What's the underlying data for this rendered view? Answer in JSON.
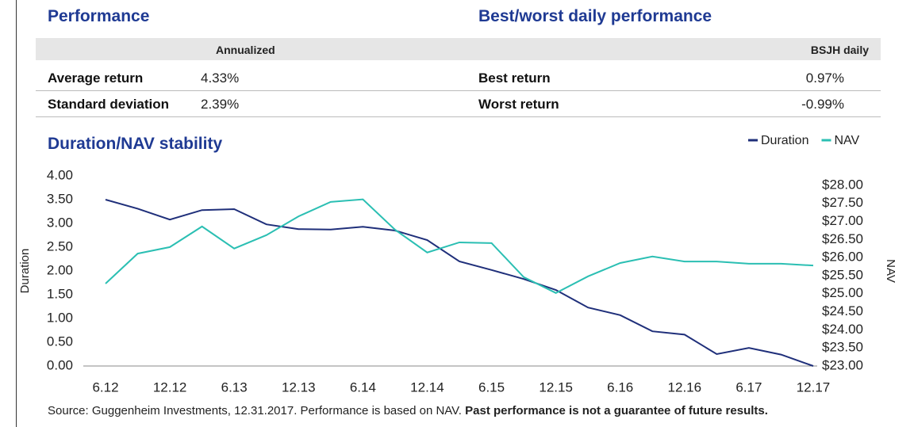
{
  "performance": {
    "title": "Performance",
    "column_header": "Annualized",
    "rows": [
      [
        "Average return",
        "4.33%"
      ],
      [
        "Standard deviation",
        "2.39%"
      ]
    ]
  },
  "best_worst": {
    "title": "Best/worst daily performance",
    "column_header": "BSJH daily",
    "rows": [
      [
        "Best return",
        "0.97%"
      ],
      [
        "Worst return",
        "-0.99%"
      ]
    ]
  },
  "chart_data": {
    "type": "line",
    "title": "Duration/NAV stability",
    "y_label": "Duration",
    "y2_label": "NAV",
    "categories": [
      "6.12",
      null,
      "12.12",
      null,
      "6.13",
      null,
      "12.13",
      null,
      "6.14",
      null,
      "12.14",
      null,
      "6.15",
      null,
      "12.15",
      null,
      "6.16",
      null,
      "12.16",
      null,
      "6.17",
      null,
      "12.17"
    ],
    "series": [
      {
        "name": "Duration",
        "color": "#1f2f7a",
        "values": [
          3.5,
          3.31,
          3.08,
          3.28,
          3.3,
          2.98,
          2.88,
          2.87,
          2.93,
          2.85,
          2.65,
          2.2,
          2.02,
          1.83,
          1.6,
          1.23,
          1.07,
          0.73,
          0.66,
          0.25,
          0.38,
          0.24,
          0.0
        ]
      },
      {
        "name": "NAV",
        "color": "#2bbfb3",
        "axis": "y2",
        "values": [
          25.28,
          26.11,
          26.29,
          26.86,
          26.25,
          26.62,
          27.14,
          27.54,
          27.61,
          26.77,
          26.14,
          26.42,
          26.4,
          25.46,
          25.02,
          25.48,
          25.85,
          26.03,
          25.89,
          25.89,
          25.83,
          25.83,
          25.78
        ]
      }
    ],
    "ylim": [
      0,
      4
    ],
    "yticks": [
      {
        "value": 0,
        "label": "0.00"
      },
      {
        "value": 0.5,
        "label": "0.50"
      },
      {
        "value": 1,
        "label": "1.00"
      },
      {
        "value": 1.5,
        "label": "1.50"
      },
      {
        "value": 2,
        "label": "2.00"
      },
      {
        "value": 2.5,
        "label": "2.50"
      },
      {
        "value": 3,
        "label": "3.00"
      },
      {
        "value": 3.5,
        "label": "3.50"
      },
      {
        "value": 4,
        "label": "4.00"
      }
    ],
    "y2lim": [
      23,
      28.26
    ],
    "y2ticks": [
      {
        "value": 23,
        "label": "$23.00"
      },
      {
        "value": 23.5,
        "label": "$23.50"
      },
      {
        "value": 24,
        "label": "$24.00"
      },
      {
        "value": 24.5,
        "label": "$24.50"
      },
      {
        "value": 25,
        "label": "$25.00"
      },
      {
        "value": 25.5,
        "label": "$25.50"
      },
      {
        "value": 26,
        "label": "$26.00"
      },
      {
        "value": 26.5,
        "label": "$26.50"
      },
      {
        "value": 27,
        "label": "$27.00"
      },
      {
        "value": 27.5,
        "label": "$27.50"
      },
      {
        "value": 28,
        "label": "$28.00"
      }
    ],
    "grid": false,
    "legend": "top-right"
  },
  "footnote": {
    "text": "Source: Guggenheim Investments, 12.31.2017. Performance is based on NAV.",
    "emphasis": "Past performance is not a guarantee of future results."
  }
}
